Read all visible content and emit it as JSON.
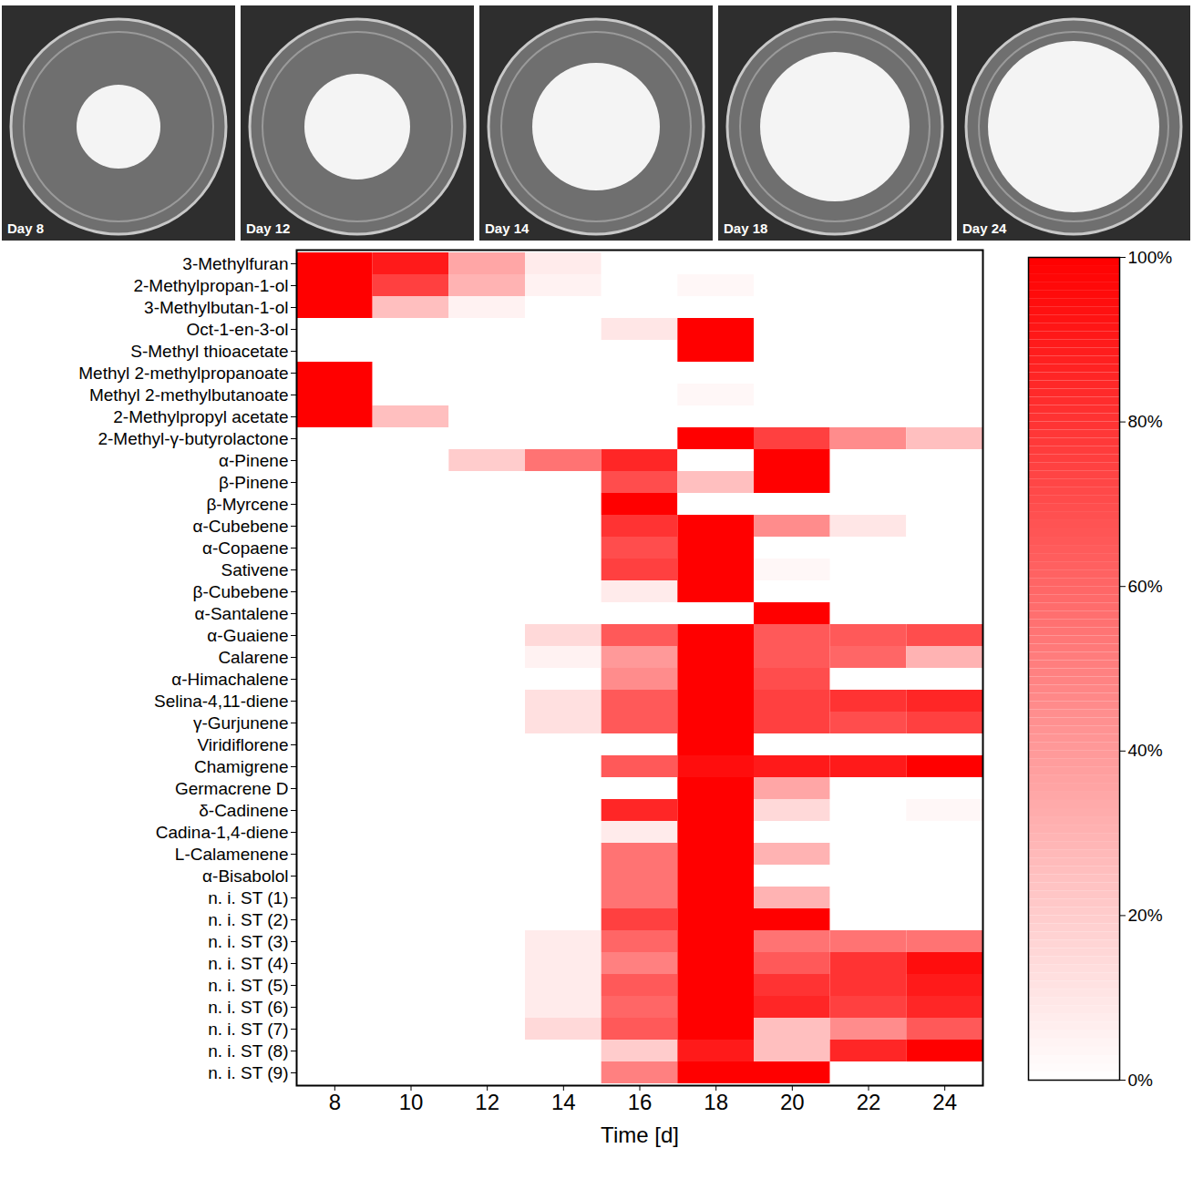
{
  "photos": {
    "labels": [
      "Day 8",
      "Day 12",
      "Day 14",
      "Day 18",
      "Day 24"
    ]
  },
  "chart_data": {
    "type": "heatmap",
    "xlabel": "Time [d]",
    "x": [
      8,
      10,
      12,
      14,
      16,
      18,
      20,
      22,
      24
    ],
    "xlim": [
      7,
      25
    ],
    "xticks": [
      8,
      10,
      12,
      14,
      16,
      18,
      20,
      22,
      24
    ],
    "color": "#ff0000",
    "y": [
      "3-Methylfuran",
      "2-Methylpropan-1-ol",
      "3-Methylbutan-1-ol",
      "Oct-1-en-3-ol",
      "S-Methyl thioacetate",
      "Methyl 2-methylpropanoate",
      "Methyl 2-methylbutanoate",
      "2-Methylpropyl acetate",
      "2-Methyl-γ-butyrolactone",
      "α-Pinene",
      "β-Pinene",
      "β-Myrcene",
      "α-Cubebene",
      "α-Copaene",
      "Sativene",
      "β-Cubebene",
      "α-Santalene",
      "α-Guaiene",
      "Calarene",
      "α-Himachalene",
      "Selina-4,11-diene",
      "γ-Gurjunene",
      "Viridiflorene",
      "Chamigrene",
      "Germacrene D",
      "δ-Cadinene",
      "Cadina-1,4-diene",
      "L-Calamenene",
      "α-Bisabolol",
      "n. i. ST (1)",
      "n. i. ST (2)",
      "n. i. ST (3)",
      "n. i. ST (4)",
      "n. i. ST (5)",
      "n. i. ST (6)",
      "n. i. ST (7)",
      "n. i. ST (8)",
      "n. i. ST (9)"
    ],
    "values": [
      [
        100,
        90,
        35,
        8,
        0,
        0,
        0,
        0,
        0
      ],
      [
        100,
        75,
        30,
        5,
        0,
        3,
        0,
        0,
        0
      ],
      [
        100,
        25,
        5,
        0,
        0,
        0,
        0,
        0,
        0
      ],
      [
        0,
        0,
        0,
        0,
        10,
        100,
        0,
        0,
        0
      ],
      [
        0,
        0,
        0,
        0,
        0,
        100,
        0,
        0,
        0
      ],
      [
        100,
        0,
        0,
        0,
        0,
        0,
        0,
        0,
        0
      ],
      [
        100,
        0,
        0,
        0,
        0,
        3,
        0,
        0,
        0
      ],
      [
        100,
        25,
        0,
        0,
        0,
        0,
        0,
        0,
        0
      ],
      [
        0,
        0,
        0,
        0,
        0,
        100,
        75,
        45,
        25
      ],
      [
        0,
        0,
        20,
        55,
        85,
        0,
        100,
        0,
        0
      ],
      [
        0,
        0,
        0,
        0,
        70,
        25,
        100,
        0,
        0
      ],
      [
        0,
        0,
        0,
        0,
        100,
        0,
        0,
        0,
        0
      ],
      [
        0,
        0,
        0,
        0,
        80,
        100,
        45,
        10,
        0
      ],
      [
        0,
        0,
        0,
        0,
        70,
        100,
        0,
        0,
        0
      ],
      [
        0,
        0,
        0,
        0,
        75,
        100,
        3,
        0,
        0
      ],
      [
        0,
        0,
        0,
        0,
        8,
        100,
        0,
        0,
        0
      ],
      [
        0,
        0,
        0,
        0,
        0,
        0,
        100,
        0,
        0
      ],
      [
        0,
        0,
        0,
        15,
        65,
        100,
        65,
        65,
        70
      ],
      [
        0,
        0,
        0,
        5,
        40,
        100,
        65,
        60,
        30
      ],
      [
        0,
        0,
        0,
        0,
        45,
        100,
        70,
        0,
        0
      ],
      [
        0,
        0,
        0,
        12,
        65,
        100,
        75,
        80,
        85
      ],
      [
        0,
        0,
        0,
        12,
        65,
        100,
        75,
        70,
        75
      ],
      [
        0,
        0,
        0,
        0,
        0,
        100,
        0,
        0,
        0
      ],
      [
        0,
        0,
        0,
        0,
        65,
        95,
        90,
        90,
        100
      ],
      [
        0,
        0,
        0,
        0,
        0,
        100,
        35,
        0,
        0
      ],
      [
        0,
        0,
        0,
        0,
        85,
        100,
        15,
        0,
        3
      ],
      [
        0,
        0,
        0,
        0,
        8,
        100,
        0,
        0,
        0
      ],
      [
        0,
        0,
        0,
        0,
        55,
        100,
        30,
        0,
        0
      ],
      [
        0,
        0,
        0,
        0,
        55,
        100,
        0,
        0,
        0
      ],
      [
        0,
        0,
        0,
        0,
        55,
        100,
        30,
        0,
        0
      ],
      [
        0,
        0,
        0,
        0,
        75,
        100,
        100,
        0,
        0
      ],
      [
        0,
        0,
        0,
        8,
        60,
        100,
        55,
        55,
        55
      ],
      [
        0,
        0,
        0,
        8,
        50,
        100,
        65,
        80,
        95
      ],
      [
        0,
        0,
        0,
        8,
        65,
        100,
        80,
        80,
        90
      ],
      [
        0,
        0,
        0,
        8,
        60,
        100,
        85,
        75,
        85
      ],
      [
        0,
        0,
        0,
        15,
        65,
        100,
        25,
        45,
        65
      ],
      [
        0,
        0,
        0,
        0,
        20,
        90,
        25,
        85,
        100
      ],
      [
        0,
        0,
        0,
        0,
        50,
        100,
        100,
        0,
        0
      ]
    ],
    "colorbar": {
      "range": [
        0,
        100
      ],
      "ticks": [
        {
          "value": 0,
          "label": "0%"
        },
        {
          "value": 20,
          "label": "20%"
        },
        {
          "value": 40,
          "label": "40%"
        },
        {
          "value": 60,
          "label": "60%"
        },
        {
          "value": 80,
          "label": "80%"
        },
        {
          "value": 100,
          "label": "100%"
        }
      ]
    }
  }
}
